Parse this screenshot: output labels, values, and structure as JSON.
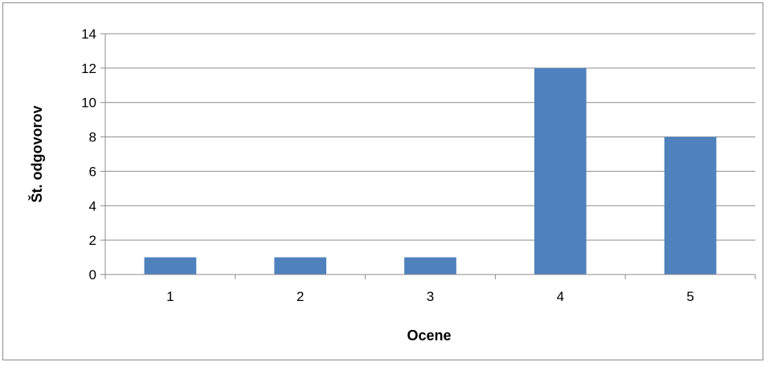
{
  "chart_data": {
    "type": "bar",
    "title": "",
    "xlabel": "Ocene",
    "ylabel": "Št. odgovorov",
    "categories": [
      "1",
      "2",
      "3",
      "4",
      "5"
    ],
    "values": [
      1,
      1,
      1,
      12,
      8
    ],
    "ylim": [
      0,
      14
    ],
    "yticks": [
      0,
      2,
      4,
      6,
      8,
      10,
      12,
      14
    ],
    "grid": true,
    "legend": "none",
    "bar_color": "#4f81bd",
    "grid_color": "#8c8c8c"
  }
}
